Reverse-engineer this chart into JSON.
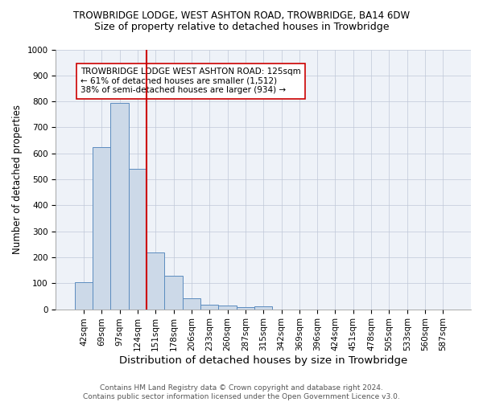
{
  "title1": "TROWBRIDGE LODGE, WEST ASHTON ROAD, TROWBRIDGE, BA14 6DW",
  "title2": "Size of property relative to detached houses in Trowbridge",
  "xlabel": "Distribution of detached houses by size in Trowbridge",
  "ylabel": "Number of detached properties",
  "bar_labels": [
    "42sqm",
    "69sqm",
    "97sqm",
    "124sqm",
    "151sqm",
    "178sqm",
    "206sqm",
    "233sqm",
    "260sqm",
    "287sqm",
    "315sqm",
    "342sqm",
    "369sqm",
    "396sqm",
    "424sqm",
    "451sqm",
    "478sqm",
    "505sqm",
    "533sqm",
    "560sqm",
    "587sqm"
  ],
  "bar_values": [
    104,
    625,
    793,
    540,
    220,
    130,
    43,
    18,
    15,
    8,
    10,
    0,
    0,
    0,
    0,
    0,
    0,
    0,
    0,
    0,
    0
  ],
  "bar_color": "#ccd9e8",
  "bar_edge_color": "#5b8cbf",
  "vline_color": "#cc0000",
  "annotation_text": "TROWBRIDGE LODGE WEST ASHTON ROAD: 125sqm\n← 61% of detached houses are smaller (1,512)\n38% of semi-detached houses are larger (934) →",
  "annotation_box_color": "#ffffff",
  "annotation_box_edge": "#cc0000",
  "ylim": [
    0,
    1000
  ],
  "yticks": [
    0,
    100,
    200,
    300,
    400,
    500,
    600,
    700,
    800,
    900,
    1000
  ],
  "bg_color": "#ffffff",
  "plot_bg_color": "#eef2f8",
  "grid_color": "#c0c8d8",
  "footer1": "Contains HM Land Registry data © Crown copyright and database right 2024.",
  "footer2": "Contains public sector information licensed under the Open Government Licence v3.0.",
  "title1_fontsize": 8.5,
  "title2_fontsize": 9,
  "xlabel_fontsize": 9.5,
  "ylabel_fontsize": 8.5,
  "tick_fontsize": 7.5,
  "annotation_fontsize": 7.5,
  "footer_fontsize": 6.5
}
